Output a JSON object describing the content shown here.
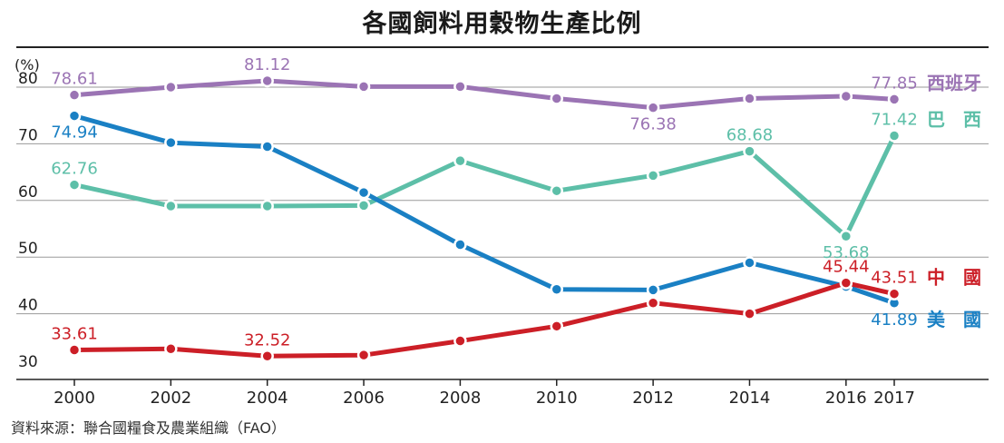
{
  "chart_data": {
    "type": "line",
    "title": "各國飼料用穀物生產比例",
    "ylabel": "(%)",
    "source": "資料來源：聯合國糧食及農業組織（FAO）",
    "x_ticks": [
      "2000",
      "2002",
      "2004",
      "2006",
      "2008",
      "2010",
      "2012",
      "2014",
      "2016",
      "2017"
    ],
    "y_ticks": [
      "30",
      "40",
      "50",
      "60",
      "70",
      "80"
    ],
    "ylim": [
      30,
      85
    ],
    "xlim": [
      1999.5,
      2018.8
    ],
    "grid": "horizontal",
    "legend": "labels at line ends (right)",
    "series": [
      {
        "name": "西班牙",
        "color": "#9b74b4",
        "x": [
          2000,
          2002,
          2004,
          2006,
          2008,
          2010,
          2012,
          2014,
          2016,
          2017
        ],
        "y": [
          78.61,
          80.0,
          81.12,
          80.1,
          80.1,
          78.0,
          76.38,
          78.0,
          78.4,
          77.85
        ],
        "labels": [
          {
            "x": 2000,
            "text": "78.61",
            "pos": "above"
          },
          {
            "x": 2004,
            "text": "81.12",
            "pos": "above"
          },
          {
            "x": 2012,
            "text": "76.38",
            "pos": "below"
          },
          {
            "x": 2017,
            "text": "77.85",
            "pos": "above"
          }
        ]
      },
      {
        "name": "巴　西",
        "color": "#5dbfa8",
        "x": [
          2000,
          2002,
          2004,
          2006,
          2008,
          2010,
          2012,
          2014,
          2016,
          2017
        ],
        "y": [
          62.76,
          59.0,
          59.0,
          59.1,
          67.0,
          61.7,
          64.4,
          68.68,
          53.68,
          71.42
        ],
        "labels": [
          {
            "x": 2000,
            "text": "62.76",
            "pos": "above"
          },
          {
            "x": 2014,
            "text": "68.68",
            "pos": "above"
          },
          {
            "x": 2016,
            "text": "53.68",
            "pos": "below"
          },
          {
            "x": 2017,
            "text": "71.42",
            "pos": "above"
          }
        ]
      },
      {
        "name": "美　國",
        "color": "#1a80c4",
        "x": [
          2000,
          2002,
          2004,
          2006,
          2008,
          2010,
          2012,
          2014,
          2016,
          2017
        ],
        "y": [
          74.94,
          70.2,
          69.5,
          61.4,
          52.2,
          44.3,
          44.2,
          49.0,
          44.8,
          41.89
        ],
        "labels": [
          {
            "x": 2000,
            "text": "74.94",
            "pos": "below"
          },
          {
            "x": 2017,
            "text": "41.89",
            "pos": "below"
          }
        ]
      },
      {
        "name": "中　國",
        "color": "#cc1f27",
        "x": [
          2000,
          2002,
          2004,
          2006,
          2008,
          2010,
          2012,
          2014,
          2016,
          2017
        ],
        "y": [
          33.61,
          33.8,
          32.52,
          32.7,
          35.2,
          37.8,
          41.9,
          40.0,
          45.44,
          43.51
        ],
        "labels": [
          {
            "x": 2000,
            "text": "33.61",
            "pos": "above"
          },
          {
            "x": 2004,
            "text": "32.52",
            "pos": "above"
          },
          {
            "x": 2016,
            "text": "45.44",
            "pos": "above"
          },
          {
            "x": 2017,
            "text": "43.51",
            "pos": "above"
          }
        ]
      }
    ]
  }
}
